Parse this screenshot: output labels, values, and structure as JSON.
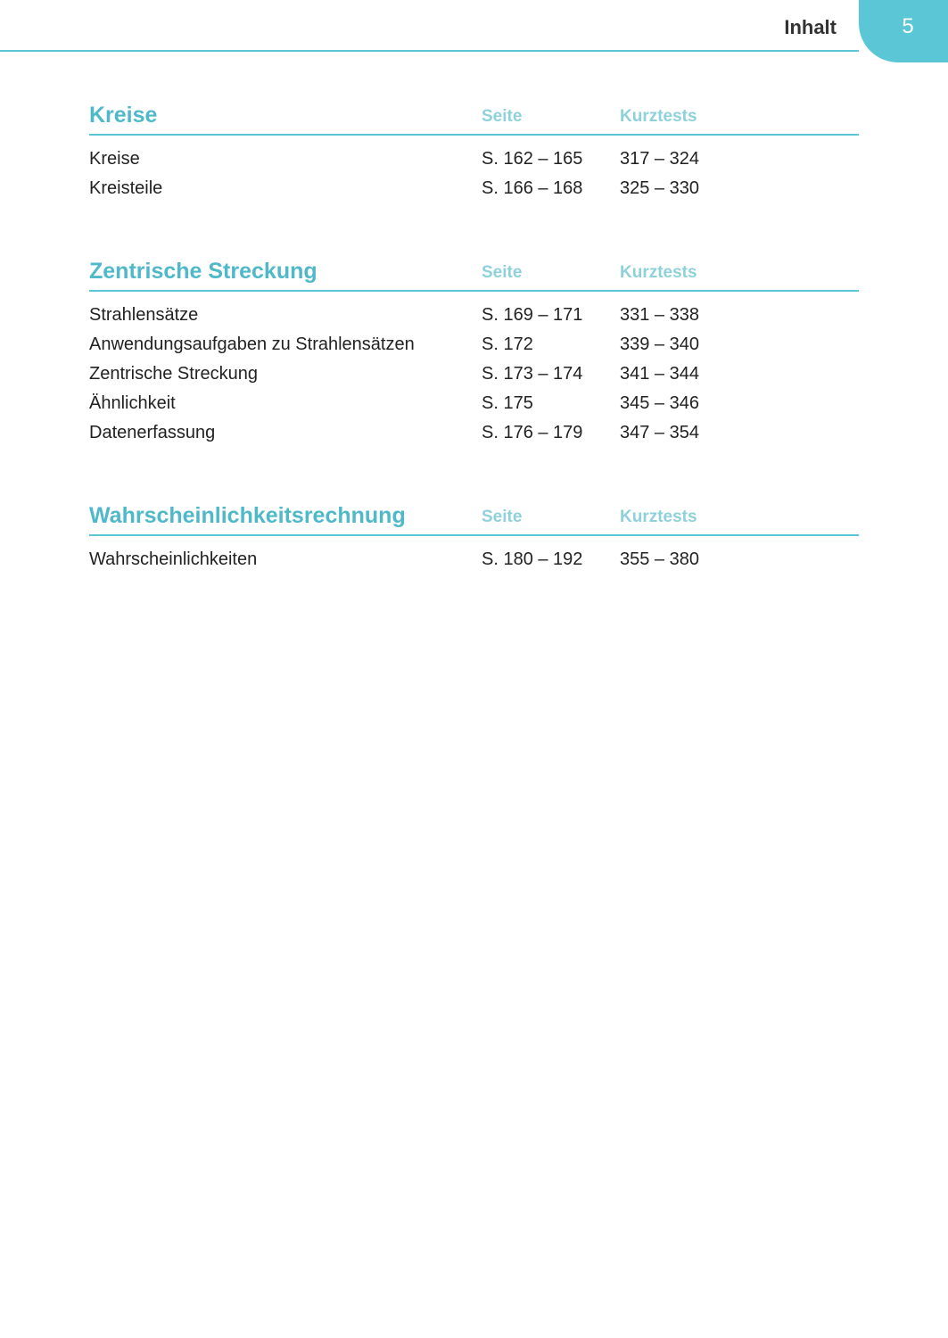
{
  "header": {
    "title": "Inhalt",
    "page_number": "5"
  },
  "columns": {
    "page": "Seite",
    "tests": "Kurztests"
  },
  "sections": [
    {
      "title": "Kreise",
      "rows": [
        {
          "name": "Kreise",
          "page": "S. 162 – 165",
          "tests": "317 – 324"
        },
        {
          "name": "Kreisteile",
          "page": "S. 166 – 168",
          "tests": "325 – 330"
        }
      ]
    },
    {
      "title": "Zentrische Streckung",
      "rows": [
        {
          "name": "Strahlensätze",
          "page": "S. 169 – 171",
          "tests": "331 – 338"
        },
        {
          "name": "Anwendungsaufgaben zu Strahlensätzen",
          "page": "S. 172",
          "tests": "339 – 340"
        },
        {
          "name": "Zentrische Streckung",
          "page": "S. 173 – 174",
          "tests": "341 – 344"
        },
        {
          "name": "Ähnlichkeit",
          "page": "S. 175",
          "tests": "345 – 346"
        },
        {
          "name": "Datenerfassung",
          "page": "S. 176 – 179",
          "tests": "347 – 354"
        }
      ]
    },
    {
      "title": "Wahrscheinlichkeitsrechnung",
      "rows": [
        {
          "name": "Wahrscheinlichkeiten",
          "page": "S. 180 – 192",
          "tests": "355 – 380"
        }
      ]
    }
  ],
  "colors": {
    "accent": "#5bc6d6",
    "section_title": "#4fb9c9",
    "col_header": "#8fd1db",
    "text": "#222222",
    "tab_bg": "#5bc6d6",
    "tab_text": "#ffffff"
  }
}
